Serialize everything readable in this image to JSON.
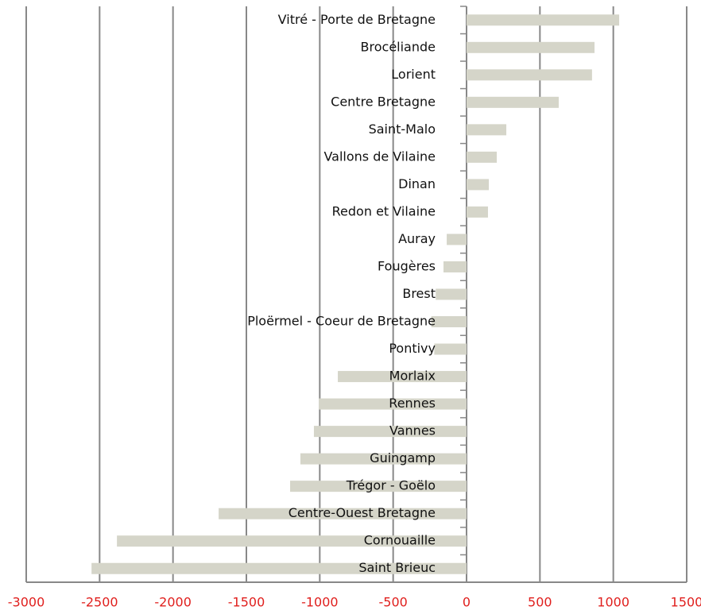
{
  "chart_data": {
    "type": "hbar",
    "categories": [
      "Vitré - Porte de Bretagne",
      "Brocéliande",
      "Lorient",
      "Centre Bretagne",
      "Saint-Malo",
      "Vallons de Vilaine",
      "Dinan",
      "Redon et Vilaine",
      "Auray",
      "Fougères",
      "Brest",
      "Ploërmel - Coeur de Bretagne",
      "Pontivy",
      "Morlaix",
      "Rennes",
      "Vannes",
      "Guingamp",
      "Trégor - Goëlo",
      "Centre-Ouest Bretagne",
      "Cornouaille",
      "Saint Brieuc"
    ],
    "values": [
      1040,
      872,
      855,
      628,
      271,
      206,
      152,
      146,
      -135,
      -157,
      -210,
      -240,
      -220,
      -877,
      -1007,
      -1040,
      -1132,
      -1202,
      -1689,
      -2382,
      -2555
    ],
    "color": "#d5d5c9",
    "xlim": [
      -3000,
      1500
    ],
    "xticks": [
      -3000,
      -2500,
      -2000,
      -1500,
      -1000,
      -500,
      0,
      500,
      1000,
      1500
    ],
    "grid": true
  }
}
